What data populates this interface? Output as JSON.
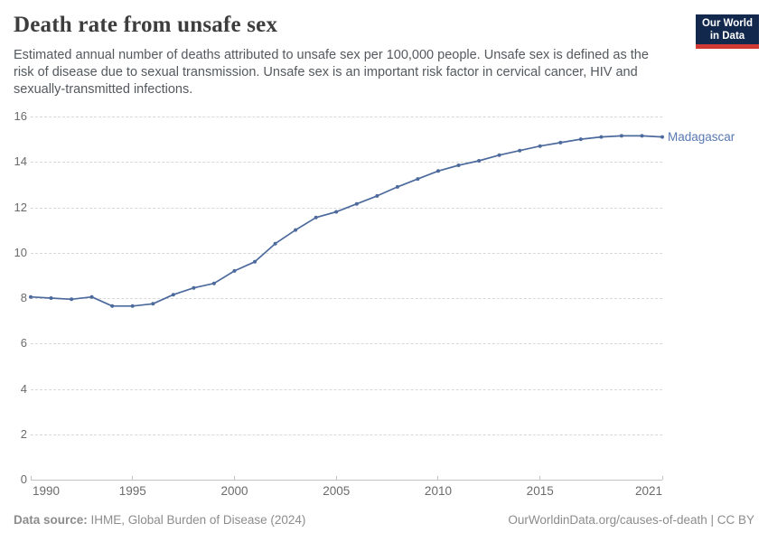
{
  "header": {
    "title": "Death rate from unsafe sex",
    "subtitle_lines": [
      "Estimated annual number of deaths attributed to unsafe sex per 100,000 people. Unsafe sex is defined as the",
      "risk of disease due to sexual transmission. Unsafe sex is an important risk factor in cervical cancer, HIV and",
      "sexually-transmitted infections."
    ],
    "logo_line1": "Our World",
    "logo_line2": "in Data",
    "logo_bg_color": "#12294d",
    "logo_bar_color": "#d13a34"
  },
  "chart_data": {
    "type": "line",
    "title": "Death rate from unsafe sex",
    "xlabel": "",
    "ylabel": "",
    "x": [
      1990,
      1991,
      1992,
      1993,
      1994,
      1995,
      1996,
      1997,
      1998,
      1999,
      2000,
      2001,
      2002,
      2003,
      2004,
      2005,
      2006,
      2007,
      2008,
      2009,
      2010,
      2011,
      2012,
      2013,
      2014,
      2015,
      2016,
      2017,
      2018,
      2019,
      2020,
      2021
    ],
    "series": [
      {
        "name": "Madagascar",
        "color": "#4c6a9c",
        "values": [
          8.05,
          8.0,
          7.95,
          8.05,
          7.65,
          7.65,
          7.75,
          8.15,
          8.45,
          8.65,
          9.2,
          9.6,
          10.4,
          11.0,
          11.55,
          11.8,
          12.15,
          12.5,
          12.9,
          13.25,
          13.6,
          13.85,
          14.05,
          14.3,
          14.5,
          14.7,
          14.85,
          15.0,
          15.1,
          15.15,
          15.15,
          15.1
        ]
      }
    ],
    "xlim": [
      1990,
      2021
    ],
    "ylim": [
      0,
      16
    ],
    "y_ticks": [
      0,
      2,
      4,
      6,
      8,
      10,
      12,
      14,
      16
    ],
    "x_ticks": [
      1990,
      1995,
      2000,
      2005,
      2010,
      2015,
      2021
    ],
    "grid": "horizontal dashed",
    "legend": "line-end label",
    "marker": "dot"
  },
  "footer": {
    "source_label": "Data source:",
    "source_value": " IHME, Global Burden of Disease (2024)",
    "attribution": "OurWorldinData.org/causes-of-death | CC BY"
  }
}
